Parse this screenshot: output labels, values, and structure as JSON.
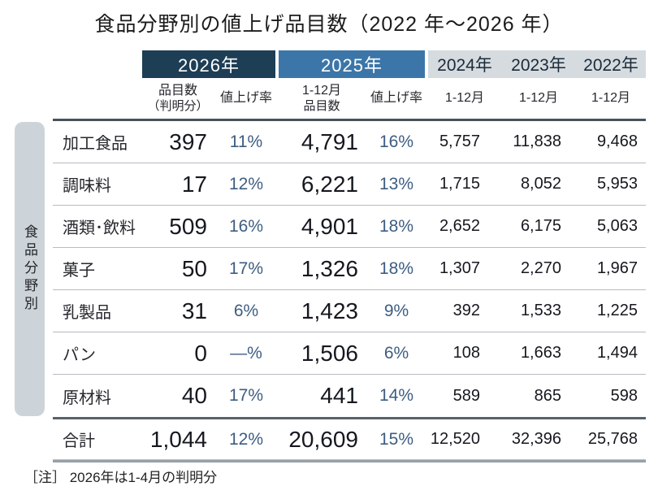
{
  "title": "食品分野別の値上げ品目数（2022 年～2026 年）",
  "side_label": "食品分野別",
  "note": "［注］ 2026年は1-4月の判明分",
  "colors": {
    "year2026_bg": "#1d3e55",
    "year2025_bg": "#3c76a8",
    "past_years_bg": "#d5dbdf",
    "percent_text": "#3d5d81",
    "number_text": "#15181f",
    "band_bg": "#cdd4d9"
  },
  "header": {
    "years": {
      "y2026": "2026年",
      "y2025": "2025年",
      "y2024": "2024年",
      "y2023": "2023年",
      "y2022": "2022年"
    },
    "subheaders": {
      "items2026_l1": "品目数",
      "items2026_l2": "（判明分）",
      "rate2026": "値上げ率",
      "items2025_l1": "1-12月",
      "items2025_l2": "品目数",
      "rate2025": "値上げ率",
      "months2024": "1-12月",
      "months2023": "1-12月",
      "months2022": "1-12月"
    }
  },
  "table": {
    "rows": [
      {
        "category": "加工食品",
        "items_2026": "397",
        "rate_2026": "11%",
        "items_2025": "4,791",
        "rate_2025": "16%",
        "items_2024": "5,757",
        "items_2023": "11,838",
        "items_2022": "9,468"
      },
      {
        "category": "調味料",
        "items_2026": "17",
        "rate_2026": "12%",
        "items_2025": "6,221",
        "rate_2025": "13%",
        "items_2024": "1,715",
        "items_2023": "8,052",
        "items_2022": "5,953"
      },
      {
        "category": "酒類･飲料",
        "items_2026": "509",
        "rate_2026": "16%",
        "items_2025": "4,901",
        "rate_2025": "18%",
        "items_2024": "2,652",
        "items_2023": "6,175",
        "items_2022": "5,063"
      },
      {
        "category": "菓子",
        "items_2026": "50",
        "rate_2026": "17%",
        "items_2025": "1,326",
        "rate_2025": "18%",
        "items_2024": "1,307",
        "items_2023": "2,270",
        "items_2022": "1,967"
      },
      {
        "category": "乳製品",
        "items_2026": "31",
        "rate_2026": "6%",
        "items_2025": "1,423",
        "rate_2025": "9%",
        "items_2024": "392",
        "items_2023": "1,533",
        "items_2022": "1,225"
      },
      {
        "category": "パン",
        "items_2026": "0",
        "rate_2026": "—%",
        "items_2025": "1,506",
        "rate_2025": "6%",
        "items_2024": "108",
        "items_2023": "1,663",
        "items_2022": "1,494"
      },
      {
        "category": "原材料",
        "items_2026": "40",
        "rate_2026": "17%",
        "items_2025": "441",
        "rate_2025": "14%",
        "items_2024": "589",
        "items_2023": "865",
        "items_2022": "598"
      }
    ],
    "total": {
      "category": "合計",
      "items_2026": "1,044",
      "rate_2026": "12%",
      "items_2025": "20,609",
      "rate_2025": "15%",
      "items_2024": "12,520",
      "items_2023": "32,396",
      "items_2022": "25,768"
    }
  },
  "chart_data": {
    "type": "table",
    "title": "食品分野別の値上げ品目数（2022年～2026年）",
    "columns": [
      "食品分野別",
      "2026年 品目数（判明分）",
      "2026年 値上げ率",
      "2025年 1-12月品目数",
      "2025年 値上げ率",
      "2024年 1-12月",
      "2023年 1-12月",
      "2022年 1-12月"
    ],
    "rows": [
      {
        "category": "加工食品",
        "items_2026": 397,
        "rate_2026": "11%",
        "items_2025": 4791,
        "rate_2025": "16%",
        "items_2024": 5757,
        "items_2023": 11838,
        "items_2022": 9468
      },
      {
        "category": "調味料",
        "items_2026": 17,
        "rate_2026": "12%",
        "items_2025": 6221,
        "rate_2025": "13%",
        "items_2024": 1715,
        "items_2023": 8052,
        "items_2022": 5953
      },
      {
        "category": "酒類･飲料",
        "items_2026": 509,
        "rate_2026": "16%",
        "items_2025": 4901,
        "rate_2025": "18%",
        "items_2024": 2652,
        "items_2023": 6175,
        "items_2022": 5063
      },
      {
        "category": "菓子",
        "items_2026": 50,
        "rate_2026": "17%",
        "items_2025": 1326,
        "rate_2025": "18%",
        "items_2024": 1307,
        "items_2023": 2270,
        "items_2022": 1967
      },
      {
        "category": "乳製品",
        "items_2026": 31,
        "rate_2026": "6%",
        "items_2025": 1423,
        "rate_2025": "9%",
        "items_2024": 392,
        "items_2023": 1533,
        "items_2022": 1225
      },
      {
        "category": "パン",
        "items_2026": 0,
        "rate_2026": "—%",
        "items_2025": 1506,
        "rate_2025": "6%",
        "items_2024": 108,
        "items_2023": 1663,
        "items_2022": 1494
      },
      {
        "category": "原材料",
        "items_2026": 40,
        "rate_2026": "17%",
        "items_2025": 441,
        "rate_2025": "14%",
        "items_2024": 589,
        "items_2023": 865,
        "items_2022": 598
      },
      {
        "category": "合計",
        "items_2026": 1044,
        "rate_2026": "12%",
        "items_2025": 20609,
        "rate_2025": "15%",
        "items_2024": 12520,
        "items_2023": 32396,
        "items_2022": 25768
      }
    ],
    "note": "2026年は1-4月の判明分"
  }
}
